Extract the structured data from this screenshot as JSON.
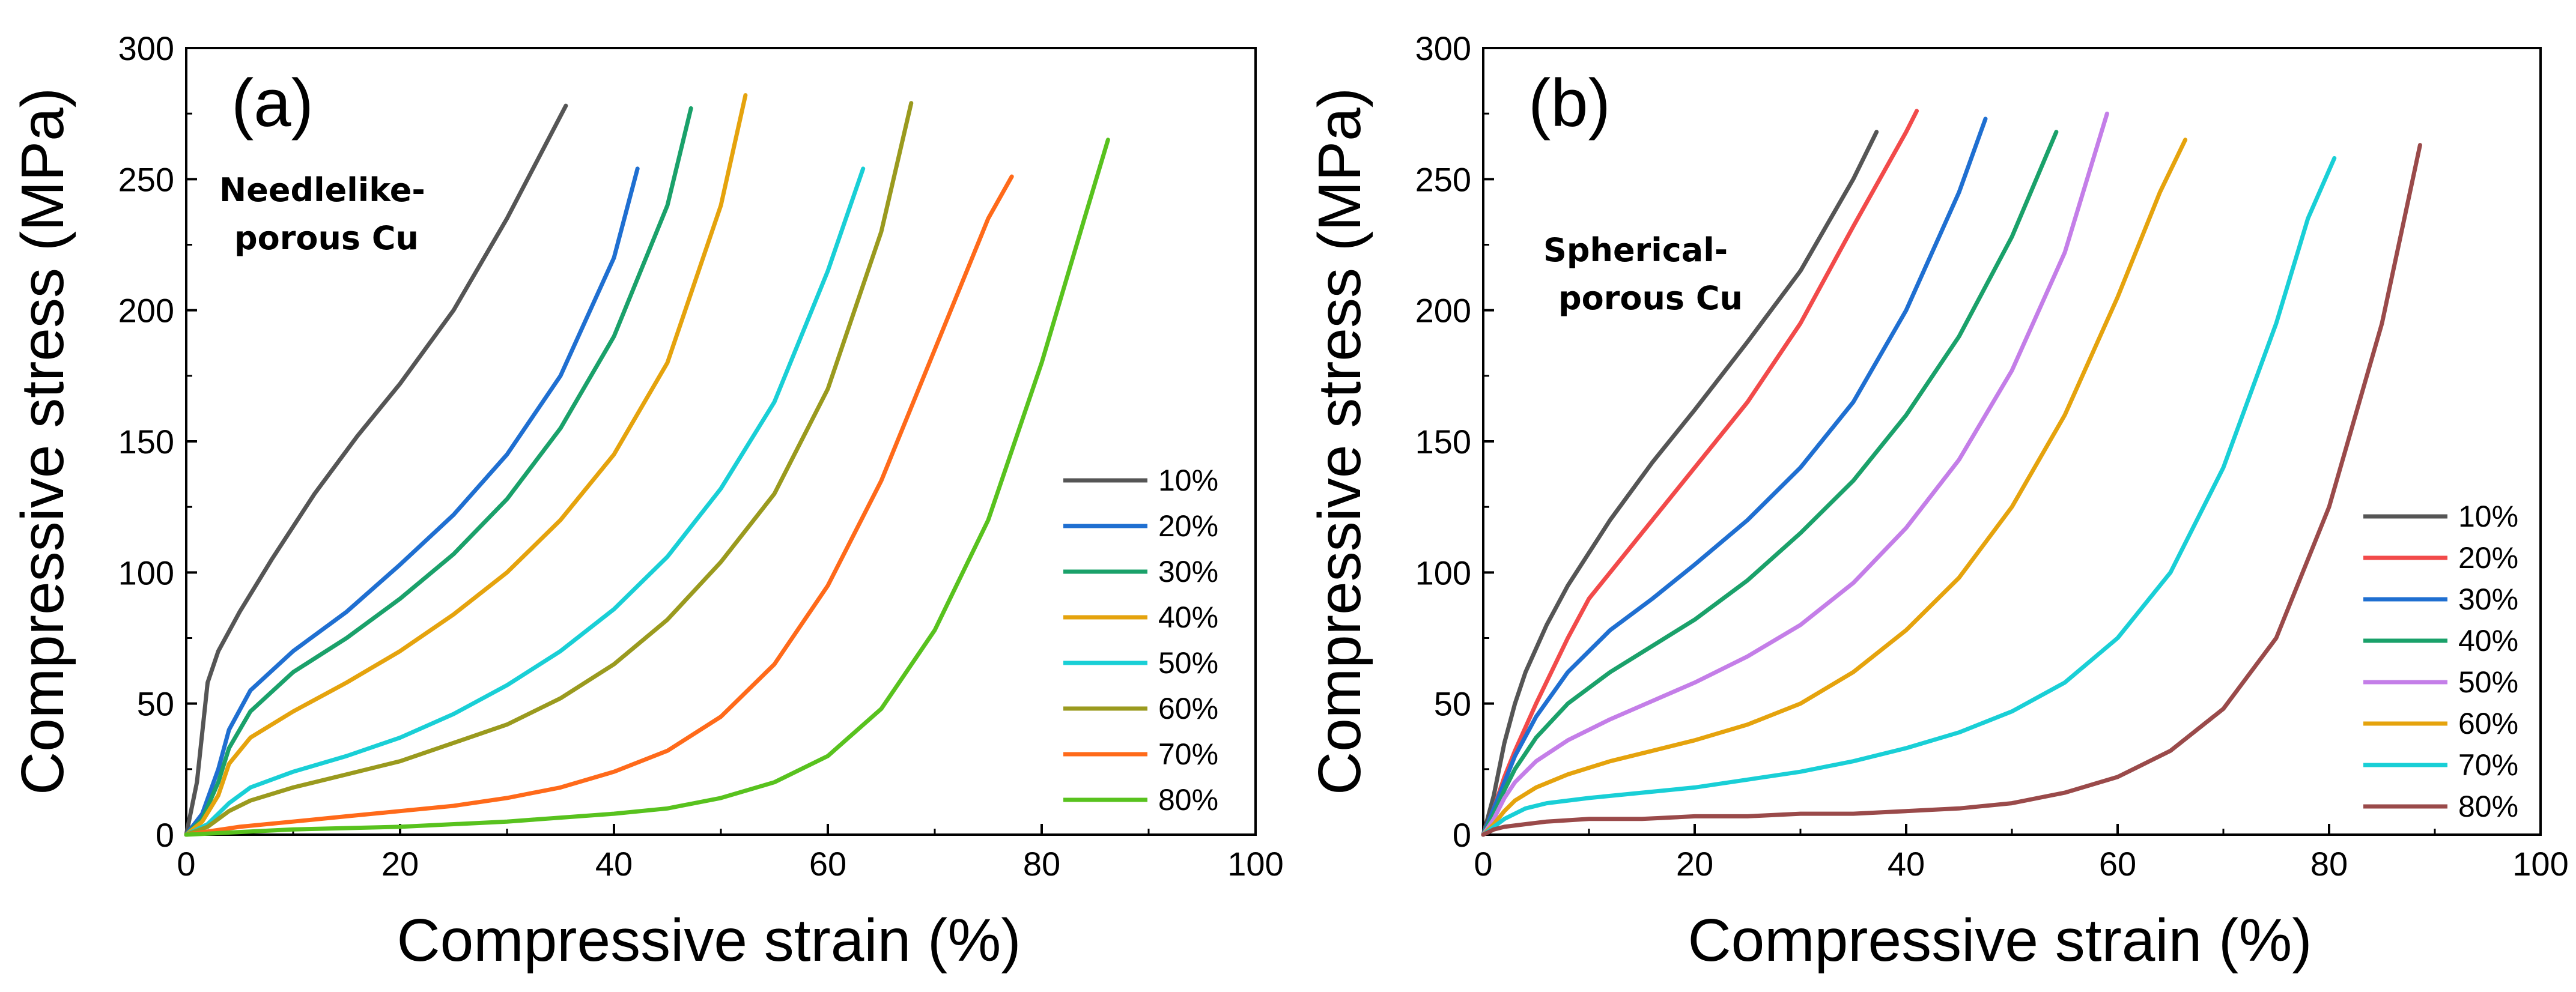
{
  "chart_data": [
    {
      "type": "line",
      "panel_label": "(a)",
      "title_lines": [
        "Needlelike-",
        "porous Cu"
      ],
      "xlabel": "Compressive strain (%)",
      "ylabel": "Compressive stress (MPa)",
      "xlim": [
        0,
        100
      ],
      "ylim": [
        0,
        300
      ],
      "xticks": [
        0,
        20,
        40,
        60,
        80,
        100
      ],
      "yticks": [
        0,
        50,
        100,
        150,
        200,
        250,
        300
      ],
      "legend_position": "center-right",
      "grid": false,
      "series": [
        {
          "name": "10%",
          "color": "#555555",
          "x": [
            0,
            1,
            2,
            3,
            5,
            8,
            12,
            16,
            20,
            25,
            30,
            35.5
          ],
          "y": [
            0,
            20,
            58,
            70,
            85,
            105,
            130,
            152,
            172,
            200,
            235,
            278
          ]
        },
        {
          "name": "20%",
          "color": "#1f6fd1",
          "x": [
            0,
            1.5,
            3,
            4,
            6,
            10,
            15,
            20,
            25,
            30,
            35,
            40,
            42.2
          ],
          "y": [
            0,
            8,
            25,
            40,
            55,
            70,
            85,
            103,
            122,
            145,
            175,
            220,
            254
          ]
        },
        {
          "name": "30%",
          "color": "#1aa16a",
          "x": [
            0,
            1.5,
            3,
            4,
            6,
            10,
            15,
            20,
            25,
            30,
            35,
            40,
            45,
            47.2
          ],
          "y": [
            0,
            6,
            20,
            33,
            47,
            62,
            75,
            90,
            107,
            128,
            155,
            190,
            240,
            277
          ]
        },
        {
          "name": "40%",
          "color": "#e5a30d",
          "x": [
            0,
            1.5,
            3,
            4,
            6,
            10,
            15,
            20,
            25,
            30,
            35,
            40,
            45,
            50,
            52.3
          ],
          "y": [
            0,
            5,
            15,
            27,
            37,
            47,
            58,
            70,
            84,
            100,
            120,
            145,
            180,
            240,
            282
          ]
        },
        {
          "name": "50%",
          "color": "#19cfd6",
          "x": [
            0,
            2,
            4,
            6,
            10,
            15,
            20,
            25,
            30,
            35,
            40,
            45,
            50,
            55,
            60,
            63.3
          ],
          "y": [
            0,
            4,
            12,
            18,
            24,
            30,
            37,
            46,
            57,
            70,
            86,
            106,
            132,
            165,
            215,
            254
          ]
        },
        {
          "name": "60%",
          "color": "#9a9a1e",
          "x": [
            0,
            2,
            4,
            6,
            10,
            15,
            20,
            25,
            30,
            35,
            40,
            45,
            50,
            55,
            60,
            65,
            67.8
          ],
          "y": [
            0,
            3,
            9,
            13,
            18,
            23,
            28,
            35,
            42,
            52,
            65,
            82,
            104,
            130,
            170,
            230,
            279
          ]
        },
        {
          "name": "70%",
          "color": "#ff6a1a",
          "x": [
            0,
            5,
            10,
            15,
            20,
            25,
            30,
            35,
            40,
            45,
            50,
            55,
            60,
            65,
            70,
            75,
            77.2
          ],
          "y": [
            0,
            3,
            5,
            7,
            9,
            11,
            14,
            18,
            24,
            32,
            45,
            65,
            95,
            135,
            185,
            235,
            251
          ]
        },
        {
          "name": "80%",
          "color": "#58c21e",
          "x": [
            0,
            10,
            20,
            30,
            40,
            45,
            50,
            55,
            60,
            65,
            70,
            75,
            80,
            84,
            86.2
          ],
          "y": [
            0,
            2,
            3,
            5,
            8,
            10,
            14,
            20,
            30,
            48,
            78,
            120,
            180,
            235,
            265
          ]
        }
      ]
    },
    {
      "type": "line",
      "panel_label": "(b)",
      "title_lines": [
        "Spherical-",
        "porous Cu"
      ],
      "xlabel": "Compressive strain (%)",
      "ylabel": "Compressive stress (MPa)",
      "xlim": [
        0,
        100
      ],
      "ylim": [
        0,
        300
      ],
      "xticks": [
        0,
        20,
        40,
        60,
        80,
        100
      ],
      "yticks": [
        0,
        50,
        100,
        150,
        200,
        250,
        300
      ],
      "legend_position": "bottom-right",
      "grid": false,
      "series": [
        {
          "name": "10%",
          "color": "#555555",
          "x": [
            0,
            1,
            2,
            3,
            4,
            6,
            8,
            12,
            16,
            20,
            25,
            30,
            35,
            37.2
          ],
          "y": [
            0,
            15,
            35,
            50,
            62,
            80,
            95,
            120,
            142,
            162,
            188,
            215,
            250,
            268
          ]
        },
        {
          "name": "20%",
          "color": "#f24a4a",
          "x": [
            0,
            1,
            2,
            3,
            5,
            8,
            10,
            15,
            20,
            25,
            30,
            35,
            40,
            41
          ],
          "y": [
            0,
            10,
            22,
            32,
            50,
            75,
            90,
            115,
            140,
            165,
            195,
            232,
            268,
            276
          ]
        },
        {
          "name": "30%",
          "color": "#1f6fd1",
          "x": [
            0,
            1,
            2,
            3,
            5,
            8,
            12,
            16,
            20,
            25,
            30,
            35,
            40,
            45,
            47.5
          ],
          "y": [
            0,
            10,
            20,
            30,
            45,
            62,
            78,
            90,
            103,
            120,
            140,
            165,
            200,
            245,
            273
          ]
        },
        {
          "name": "40%",
          "color": "#1aa16a",
          "x": [
            0,
            1,
            2,
            3,
            5,
            8,
            12,
            16,
            20,
            25,
            30,
            35,
            40,
            45,
            50,
            54.2
          ],
          "y": [
            0,
            8,
            17,
            25,
            37,
            50,
            62,
            72,
            82,
            97,
            115,
            135,
            160,
            190,
            228,
            268
          ]
        },
        {
          "name": "50%",
          "color": "#c47ee8",
          "x": [
            0,
            1,
            2,
            3,
            5,
            8,
            12,
            16,
            20,
            25,
            30,
            35,
            40,
            45,
            50,
            55,
            59
          ],
          "y": [
            0,
            6,
            14,
            20,
            28,
            36,
            44,
            51,
            58,
            68,
            80,
            96,
            117,
            143,
            177,
            222,
            275
          ]
        },
        {
          "name": "60%",
          "color": "#e5a30d",
          "x": [
            0,
            1,
            2,
            3,
            5,
            8,
            12,
            16,
            20,
            25,
            30,
            35,
            40,
            45,
            50,
            55,
            60,
            64,
            66.4
          ],
          "y": [
            0,
            4,
            9,
            13,
            18,
            23,
            28,
            32,
            36,
            42,
            50,
            62,
            78,
            98,
            125,
            160,
            205,
            245,
            265
          ]
        },
        {
          "name": "70%",
          "color": "#19cfd6",
          "x": [
            0,
            1,
            2,
            4,
            6,
            10,
            15,
            20,
            25,
            30,
            35,
            40,
            45,
            50,
            55,
            60,
            65,
            70,
            75,
            78,
            80.5
          ],
          "y": [
            0,
            3,
            6,
            10,
            12,
            14,
            16,
            18,
            21,
            24,
            28,
            33,
            39,
            47,
            58,
            75,
            100,
            140,
            195,
            235,
            258
          ]
        },
        {
          "name": "80%",
          "color": "#9a4a4a",
          "x": [
            0,
            1,
            2,
            4,
            6,
            10,
            15,
            20,
            25,
            30,
            35,
            40,
            45,
            50,
            55,
            60,
            65,
            70,
            75,
            80,
            85,
            88.6
          ],
          "y": [
            0,
            2,
            3,
            4,
            5,
            6,
            6,
            7,
            7,
            8,
            8,
            9,
            10,
            12,
            16,
            22,
            32,
            48,
            75,
            125,
            195,
            263
          ]
        }
      ]
    }
  ]
}
